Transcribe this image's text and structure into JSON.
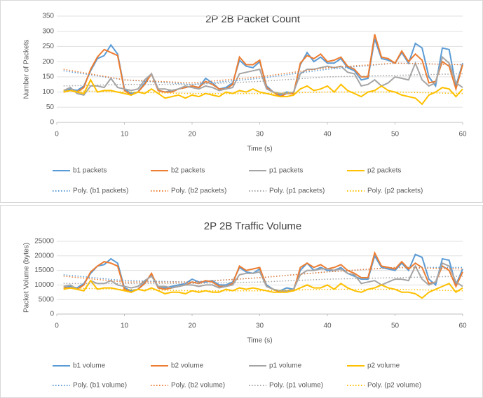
{
  "chart_data": [
    {
      "type": "line",
      "title": "2P 2B Packet Count",
      "xlabel": "Time (s)",
      "ylabel": "Number of Packets",
      "xlim": [
        0,
        60
      ],
      "xticks": [
        0,
        10,
        20,
        30,
        40,
        50,
        60
      ],
      "ylim": [
        0,
        350
      ],
      "yticks": [
        0,
        50,
        100,
        150,
        200,
        250,
        300,
        350
      ],
      "grid": true,
      "x": [
        1,
        2,
        3,
        4,
        5,
        6,
        7,
        8,
        9,
        10,
        11,
        12,
        13,
        14,
        15,
        16,
        17,
        18,
        19,
        20,
        21,
        22,
        23,
        24,
        25,
        26,
        27,
        28,
        29,
        30,
        31,
        32,
        33,
        34,
        35,
        36,
        37,
        38,
        39,
        40,
        41,
        42,
        43,
        44,
        45,
        46,
        47,
        48,
        49,
        50,
        51,
        52,
        53,
        54,
        55,
        56,
        57,
        58,
        59,
        60
      ],
      "series": [
        {
          "name": "b1 packets",
          "color": "#5b9bd5",
          "style": "solid",
          "values": [
            100,
            110,
            105,
            120,
            170,
            210,
            220,
            255,
            225,
            110,
            95,
            100,
            130,
            160,
            105,
            100,
            105,
            110,
            115,
            120,
            115,
            145,
            130,
            110,
            115,
            130,
            205,
            185,
            180,
            200,
            120,
            100,
            90,
            100,
            95,
            190,
            230,
            200,
            215,
            195,
            195,
            210,
            180,
            170,
            140,
            145,
            275,
            210,
            205,
            195,
            230,
            195,
            260,
            245,
            150,
            120,
            245,
            240,
            120,
            195
          ]
        },
        {
          "name": "b2 packets",
          "color": "#ed7d31",
          "style": "solid",
          "values": [
            100,
            105,
            100,
            115,
            175,
            215,
            240,
            230,
            220,
            105,
            90,
            100,
            125,
            160,
            105,
            100,
            100,
            110,
            115,
            120,
            115,
            135,
            125,
            110,
            110,
            125,
            215,
            190,
            190,
            205,
            115,
            100,
            85,
            95,
            95,
            195,
            220,
            210,
            225,
            200,
            205,
            215,
            185,
            175,
            150,
            150,
            290,
            215,
            210,
            195,
            235,
            200,
            225,
            205,
            130,
            135,
            200,
            185,
            110,
            190
          ]
        },
        {
          "name": "p1 packets",
          "color": "#a5a5a5",
          "style": "solid",
          "values": [
            105,
            115,
            95,
            90,
            120,
            120,
            115,
            145,
            115,
            110,
            105,
            110,
            140,
            160,
            110,
            110,
            105,
            110,
            120,
            115,
            110,
            120,
            115,
            105,
            110,
            115,
            160,
            165,
            170,
            175,
            110,
            100,
            95,
            95,
            100,
            160,
            175,
            175,
            180,
            185,
            180,
            185,
            165,
            160,
            120,
            125,
            140,
            120,
            130,
            150,
            145,
            140,
            195,
            140,
            120,
            130,
            215,
            195,
            130,
            115
          ]
        },
        {
          "name": "p2 packets",
          "color": "#ffc000",
          "style": "solid",
          "values": [
            100,
            105,
            100,
            95,
            140,
            100,
            105,
            105,
            100,
            95,
            90,
            100,
            95,
            110,
            95,
            80,
            85,
            90,
            80,
            90,
            85,
            95,
            90,
            85,
            100,
            95,
            105,
            100,
            110,
            100,
            95,
            90,
            85,
            85,
            90,
            110,
            120,
            105,
            110,
            120,
            100,
            125,
            105,
            95,
            85,
            100,
            105,
            120,
            105,
            100,
            90,
            85,
            80,
            60,
            90,
            100,
            115,
            110,
            85,
            110
          ]
        },
        {
          "name": "Poly. (b1 packets)",
          "color": "#5b9bd5",
          "style": "dotted",
          "x": [
            1,
            10,
            20,
            30,
            40,
            50,
            60
          ],
          "values": [
            170,
            140,
            125,
            145,
            175,
            195,
            190
          ]
        },
        {
          "name": "Poly. (b2 packets)",
          "color": "#ed7d31",
          "style": "dotted",
          "x": [
            1,
            10,
            20,
            30,
            40,
            50,
            60
          ],
          "values": [
            175,
            140,
            130,
            150,
            180,
            195,
            190
          ]
        },
        {
          "name": "Poly. (p1 packets)",
          "color": "#a5a5a5",
          "style": "dotted",
          "x": [
            1,
            10,
            20,
            30,
            40,
            50,
            60
          ],
          "values": [
            120,
            125,
            125,
            135,
            150,
            155,
            160
          ]
        },
        {
          "name": "Poly. (p2 packets)",
          "color": "#ffc000",
          "style": "dotted",
          "x": [
            1,
            10,
            20,
            30,
            40,
            50,
            60
          ],
          "values": [
            105,
            100,
            95,
            95,
            100,
            100,
            95
          ]
        }
      ]
    },
    {
      "type": "line",
      "title": "2P 2B Traffic Volume",
      "xlabel": "Time (s)",
      "ylabel": "Packet Volume (bytes)",
      "xlim": [
        0,
        60
      ],
      "xticks": [
        0,
        10,
        20,
        30,
        40,
        50,
        60
      ],
      "ylim": [
        0,
        25000
      ],
      "yticks": [
        0,
        5000,
        10000,
        15000,
        20000,
        25000
      ],
      "grid": true,
      "x": [
        1,
        2,
        3,
        4,
        5,
        6,
        7,
        8,
        9,
        10,
        11,
        12,
        13,
        14,
        15,
        16,
        17,
        18,
        19,
        20,
        21,
        22,
        23,
        24,
        25,
        26,
        27,
        28,
        29,
        30,
        31,
        32,
        33,
        34,
        35,
        36,
        37,
        38,
        39,
        40,
        41,
        42,
        43,
        44,
        45,
        46,
        47,
        48,
        49,
        50,
        51,
        52,
        53,
        54,
        55,
        56,
        57,
        58,
        59,
        60
      ],
      "series": [
        {
          "name": "b1 volume",
          "color": "#5b9bd5",
          "style": "solid",
          "values": [
            9000,
            9500,
            9000,
            10500,
            14000,
            16500,
            17000,
            19000,
            17500,
            9000,
            8000,
            8500,
            11000,
            13500,
            9000,
            9000,
            9500,
            10000,
            10500,
            12000,
            11000,
            11000,
            11500,
            10000,
            10000,
            11000,
            16000,
            14500,
            14000,
            15500,
            10000,
            8500,
            8000,
            9000,
            8500,
            15000,
            17500,
            15000,
            16000,
            15000,
            15000,
            16000,
            14000,
            13000,
            12000,
            12000,
            20000,
            16000,
            15500,
            15000,
            17500,
            15000,
            20500,
            19500,
            12000,
            10000,
            19000,
            18500,
            10000,
            15500
          ]
        },
        {
          "name": "b2 volume",
          "color": "#ed7d31",
          "style": "solid",
          "values": [
            9000,
            9000,
            8500,
            10000,
            14500,
            16500,
            18000,
            17500,
            16500,
            8500,
            7500,
            8500,
            10500,
            14000,
            9000,
            8500,
            9000,
            9500,
            10000,
            11000,
            10500,
            11500,
            11000,
            9500,
            9500,
            10500,
            16500,
            15000,
            15500,
            16000,
            9500,
            8500,
            7500,
            8000,
            8000,
            16000,
            17500,
            16000,
            17000,
            15500,
            16000,
            17000,
            15000,
            14000,
            12500,
            12500,
            21000,
            16500,
            16000,
            15500,
            18000,
            15500,
            17500,
            16000,
            10500,
            11000,
            16500,
            15000,
            9500,
            14500
          ]
        },
        {
          "name": "p1 volume",
          "color": "#a5a5a5",
          "style": "solid",
          "values": [
            9500,
            10000,
            8500,
            8000,
            11500,
            10500,
            10500,
            11500,
            10000,
            9500,
            9000,
            9500,
            11500,
            13000,
            9500,
            9500,
            9000,
            9500,
            10000,
            10000,
            9500,
            10000,
            10000,
            9000,
            9500,
            10000,
            13500,
            14000,
            14000,
            14500,
            9500,
            8500,
            8000,
            8000,
            8500,
            13500,
            15000,
            15000,
            15500,
            15500,
            15000,
            15500,
            14000,
            13500,
            10500,
            11000,
            11500,
            10000,
            11000,
            12000,
            12000,
            11500,
            16500,
            12000,
            10000,
            11000,
            17500,
            16500,
            11000,
            9500
          ]
        },
        {
          "name": "p2 volume",
          "color": "#ffc000",
          "style": "solid",
          "values": [
            8500,
            9000,
            8500,
            8000,
            11500,
            8500,
            9000,
            9000,
            8500,
            8000,
            7500,
            8500,
            8000,
            9000,
            8000,
            7000,
            7500,
            7500,
            7000,
            8000,
            7500,
            8000,
            7500,
            7500,
            8500,
            8000,
            9000,
            8500,
            9000,
            8500,
            8000,
            7500,
            7500,
            7500,
            8000,
            9000,
            10000,
            9000,
            9000,
            10000,
            8500,
            10500,
            9000,
            8000,
            7500,
            8500,
            9000,
            10000,
            9000,
            8500,
            7500,
            7500,
            7000,
            5500,
            7500,
            8500,
            9500,
            10500,
            7500,
            9000
          ]
        },
        {
          "name": "Poly. (b1 volume)",
          "color": "#5b9bd5",
          "style": "dotted",
          "x": [
            1,
            10,
            20,
            30,
            40,
            50,
            60
          ],
          "values": [
            13500,
            11500,
            11000,
            12500,
            14500,
            16000,
            16000
          ]
        },
        {
          "name": "Poly. (b2 volume)",
          "color": "#ed7d31",
          "style": "dotted",
          "x": [
            1,
            10,
            20,
            30,
            40,
            50,
            60
          ],
          "values": [
            13000,
            11000,
            11000,
            12500,
            14500,
            16000,
            15500
          ]
        },
        {
          "name": "Poly. (p1 volume)",
          "color": "#a5a5a5",
          "style": "dotted",
          "x": [
            1,
            10,
            20,
            30,
            40,
            50,
            60
          ],
          "values": [
            10500,
            10500,
            10500,
            11000,
            12000,
            12500,
            13000
          ]
        },
        {
          "name": "Poly. (p2 volume)",
          "color": "#ffc000",
          "style": "dotted",
          "x": [
            1,
            10,
            20,
            30,
            40,
            50,
            60
          ],
          "values": [
            9000,
            8500,
            8000,
            8000,
            8500,
            8500,
            8000
          ]
        }
      ]
    }
  ]
}
